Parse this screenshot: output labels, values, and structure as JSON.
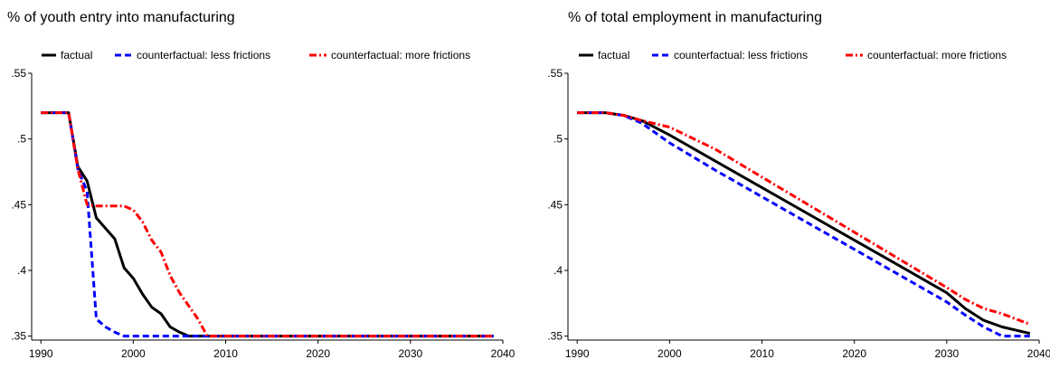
{
  "colors": {
    "factual": "#000000",
    "counterfactual_less": "#0000ff",
    "counterfactual_more": "#ff0000"
  },
  "chart_data": [
    {
      "type": "line",
      "title": "% of youth entry into manufacturing",
      "xlabel": "",
      "ylabel": "",
      "xlim": [
        1989,
        2040
      ],
      "ylim": [
        0.347,
        0.55
      ],
      "xticks": [
        1990,
        2000,
        2010,
        2020,
        2030,
        2040
      ],
      "xtick_labels": [
        "1990",
        "2000",
        "2010",
        "2020",
        "2030",
        "2040"
      ],
      "yticks": [
        0.35,
        0.4,
        0.45,
        0.5,
        0.55
      ],
      "ytick_labels": [
        ".35",
        ".4",
        ".45",
        ".5",
        ".55"
      ],
      "grid": false,
      "legend_position": "top",
      "legend": [
        "factual",
        "counterfactual: less frictions",
        "counterfactual: more frictions"
      ],
      "series": [
        {
          "name": "factual",
          "style": "solid",
          "x": [
            1990,
            1993,
            1994,
            1995,
            1996,
            1997,
            1998,
            1999,
            2000,
            2001,
            2002,
            2003,
            2004,
            2005,
            2006,
            2008,
            2010,
            2020,
            2030,
            2039
          ],
          "y": [
            0.52,
            0.52,
            0.479,
            0.468,
            0.44,
            0.432,
            0.424,
            0.402,
            0.394,
            0.382,
            0.372,
            0.367,
            0.357,
            0.353,
            0.35,
            0.35,
            0.35,
            0.35,
            0.35,
            0.35
          ]
        },
        {
          "name": "counterfactual: less frictions",
          "style": "dashed",
          "x": [
            1990,
            1993,
            1994,
            1995,
            1996,
            1997,
            1998,
            1999,
            2000,
            2005,
            2010,
            2020,
            2030,
            2039
          ],
          "y": [
            0.52,
            0.52,
            0.477,
            0.46,
            0.363,
            0.357,
            0.353,
            0.35,
            0.35,
            0.35,
            0.35,
            0.35,
            0.35,
            0.35
          ]
        },
        {
          "name": "counterfactual: more frictions",
          "style": "dashdot",
          "x": [
            1990,
            1993,
            1994,
            1995,
            1996,
            1998,
            1999,
            2000,
            2001,
            2002,
            2003,
            2004,
            2005,
            2006,
            2007,
            2008,
            2010,
            2020,
            2030,
            2039
          ],
          "y": [
            0.52,
            0.52,
            0.477,
            0.45,
            0.449,
            0.449,
            0.449,
            0.446,
            0.437,
            0.423,
            0.414,
            0.396,
            0.383,
            0.373,
            0.363,
            0.35,
            0.35,
            0.35,
            0.35,
            0.35
          ]
        }
      ]
    },
    {
      "type": "line",
      "title": "% of total employment in manufacturing",
      "xlabel": "",
      "ylabel": "",
      "xlim": [
        1989,
        2040
      ],
      "ylim": [
        0.347,
        0.55
      ],
      "xticks": [
        1990,
        2000,
        2010,
        2020,
        2030,
        2040
      ],
      "xtick_labels": [
        "1990",
        "2000",
        "2010",
        "2020",
        "2030",
        "2040"
      ],
      "yticks": [
        0.35,
        0.4,
        0.45,
        0.5,
        0.55
      ],
      "ytick_labels": [
        ".35",
        ".4",
        ".45",
        ".5",
        ".55"
      ],
      "grid": false,
      "legend_position": "top",
      "legend": [
        "factual",
        "counterfactual: less frictions",
        "counterfactual: more frictions"
      ],
      "series": [
        {
          "name": "factual",
          "style": "solid",
          "x": [
            1990,
            1993,
            1995,
            1997,
            2000,
            2005,
            2010,
            2015,
            2020,
            2025,
            2030,
            2032,
            2034,
            2036,
            2039
          ],
          "y": [
            0.52,
            0.52,
            0.518,
            0.514,
            0.503,
            0.483,
            0.463,
            0.443,
            0.423,
            0.403,
            0.383,
            0.371,
            0.362,
            0.357,
            0.352
          ]
        },
        {
          "name": "counterfactual: less frictions",
          "style": "dashed",
          "x": [
            1990,
            1993,
            1995,
            1997,
            2000,
            2005,
            2010,
            2015,
            2020,
            2025,
            2030,
            2032,
            2034,
            2036,
            2039
          ],
          "y": [
            0.52,
            0.52,
            0.518,
            0.512,
            0.497,
            0.476,
            0.456,
            0.436,
            0.416,
            0.396,
            0.376,
            0.366,
            0.357,
            0.35,
            0.35
          ]
        },
        {
          "name": "counterfactual: more frictions",
          "style": "dashdot",
          "x": [
            1990,
            1993,
            1995,
            1997,
            2000,
            2005,
            2010,
            2015,
            2020,
            2025,
            2030,
            2032,
            2034,
            2036,
            2039
          ],
          "y": [
            0.52,
            0.52,
            0.518,
            0.514,
            0.509,
            0.492,
            0.471,
            0.45,
            0.429,
            0.408,
            0.387,
            0.378,
            0.371,
            0.367,
            0.359
          ]
        }
      ]
    }
  ]
}
